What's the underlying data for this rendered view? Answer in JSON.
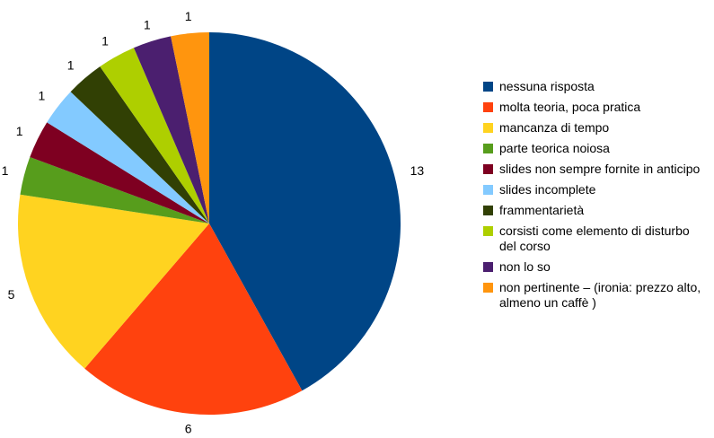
{
  "chart_data": {
    "type": "pie",
    "title": "",
    "categories": [
      "nessuna risposta",
      "molta teoria, poca pratica",
      "mancanza di tempo",
      "parte teorica noiosa",
      "slides non sempre fornite in anticipo",
      "slides incomplete",
      "frammentarietà",
      "corsisti come elemento di disturbo del corso",
      "non lo so",
      "non pertinente – (ironia: prezzo alto, almeno un caffè )"
    ],
    "values": [
      13,
      6,
      5,
      1,
      1,
      1,
      1,
      1,
      1,
      1
    ],
    "colors": [
      "#004586",
      "#ff420e",
      "#ffd320",
      "#579d1c",
      "#7e0021",
      "#83caff",
      "#314004",
      "#aecf00",
      "#4b1f6f",
      "#ff950e"
    ],
    "legend_position": "right"
  }
}
